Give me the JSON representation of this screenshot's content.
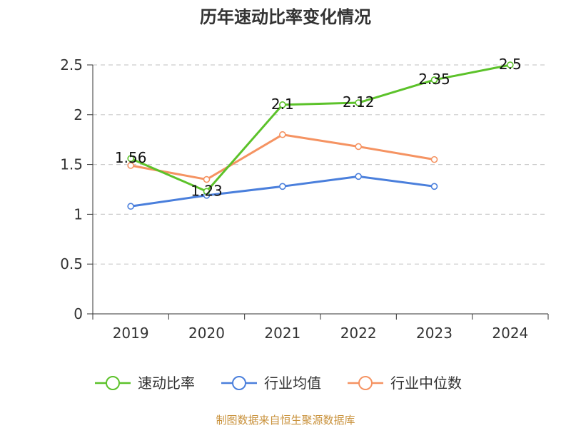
{
  "chart_data": {
    "type": "line",
    "title": "历年速动比率变化情况",
    "categories": [
      "2019",
      "2020",
      "2021",
      "2022",
      "2023",
      "2024"
    ],
    "y_ticks": [
      "0",
      "0.5",
      "1",
      "1.5",
      "2",
      "2.5"
    ],
    "ylim": [
      0,
      2.5
    ],
    "grid": true,
    "legend_position": "bottom",
    "series": [
      {
        "name": "速动比率",
        "color": "#5cc22a",
        "values": [
          1.56,
          1.23,
          2.1,
          2.12,
          2.35,
          2.5
        ],
        "labels": [
          "1.56",
          "1.23",
          "2.1",
          "2.12",
          "2.35",
          "2.5"
        ]
      },
      {
        "name": "行业均值",
        "color": "#4a7fdc",
        "values": [
          1.08,
          1.19,
          1.28,
          1.38,
          1.28,
          null
        ]
      },
      {
        "name": "行业中位数",
        "color": "#f59362",
        "values": [
          1.49,
          1.35,
          1.8,
          1.68,
          1.55,
          null
        ]
      }
    ]
  },
  "source": "制图数据来自恒生聚源数据库"
}
